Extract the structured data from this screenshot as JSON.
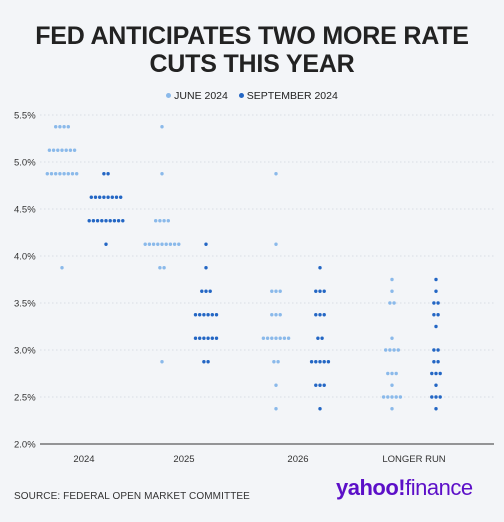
{
  "title_line1": "FED ANTICIPATES TWO MORE RATE",
  "title_line2": "CUTS THIS YEAR",
  "legend": {
    "june": "JUNE 2024",
    "september": "SEPTEMBER 2024"
  },
  "colors": {
    "june": "#8ab9ea",
    "september": "#2366c4",
    "logo": "#5c0fc8",
    "background": "#f3f5f8"
  },
  "source": "SOURCE: FEDERAL OPEN MARKET COMMITTEE",
  "logo": {
    "yahoo": "yahoo",
    "bang": "!",
    "finance": "finance"
  },
  "chart_data": {
    "type": "scatter",
    "categories": [
      "2024",
      "2025",
      "2026",
      "LONGER RUN"
    ],
    "y_ticks": [
      "2.0%",
      "2.5%",
      "3.0%",
      "3.5%",
      "4.0%",
      "4.5%",
      "5.0%",
      "5.5%"
    ],
    "ylim": [
      2.0,
      5.5
    ],
    "series": [
      {
        "name": "JUNE 2024",
        "points": [
          {
            "category": "2024",
            "rates": [
              {
                "value": 5.375,
                "count": 4
              },
              {
                "value": 5.125,
                "count": 7
              },
              {
                "value": 4.875,
                "count": 8
              },
              {
                "value": 3.875,
                "count": 1
              }
            ]
          },
          {
            "category": "2025",
            "rates": [
              {
                "value": 5.375,
                "count": 1
              },
              {
                "value": 4.875,
                "count": 1
              },
              {
                "value": 4.375,
                "count": 4
              },
              {
                "value": 4.125,
                "count": 9
              },
              {
                "value": 3.875,
                "count": 2
              },
              {
                "value": 2.875,
                "count": 1
              }
            ]
          },
          {
            "category": "2026",
            "rates": [
              {
                "value": 4.875,
                "count": 1
              },
              {
                "value": 4.125,
                "count": 1
              },
              {
                "value": 3.625,
                "count": 3
              },
              {
                "value": 3.375,
                "count": 3
              },
              {
                "value": 3.125,
                "count": 7
              },
              {
                "value": 2.875,
                "count": 2
              },
              {
                "value": 2.625,
                "count": 1
              },
              {
                "value": 2.375,
                "count": 1
              }
            ]
          },
          {
            "category": "LONGER RUN",
            "rates": [
              {
                "value": 3.75,
                "count": 1
              },
              {
                "value": 3.625,
                "count": 1
              },
              {
                "value": 3.5,
                "count": 2
              },
              {
                "value": 3.125,
                "count": 1
              },
              {
                "value": 3.0,
                "count": 4
              },
              {
                "value": 2.75,
                "count": 3
              },
              {
                "value": 2.625,
                "count": 1
              },
              {
                "value": 2.5,
                "count": 5
              },
              {
                "value": 2.375,
                "count": 1
              }
            ]
          }
        ]
      },
      {
        "name": "SEPTEMBER 2024",
        "points": [
          {
            "category": "2024",
            "rates": [
              {
                "value": 4.875,
                "count": 2
              },
              {
                "value": 4.625,
                "count": 8
              },
              {
                "value": 4.375,
                "count": 9
              },
              {
                "value": 4.125,
                "count": 1
              }
            ]
          },
          {
            "category": "2025",
            "rates": [
              {
                "value": 4.125,
                "count": 1
              },
              {
                "value": 3.875,
                "count": 1
              },
              {
                "value": 3.625,
                "count": 3
              },
              {
                "value": 3.375,
                "count": 6
              },
              {
                "value": 3.125,
                "count": 6
              },
              {
                "value": 2.875,
                "count": 2
              }
            ]
          },
          {
            "category": "2026",
            "rates": [
              {
                "value": 3.875,
                "count": 1
              },
              {
                "value": 3.625,
                "count": 3
              },
              {
                "value": 3.375,
                "count": 3
              },
              {
                "value": 3.125,
                "count": 2
              },
              {
                "value": 2.875,
                "count": 5
              },
              {
                "value": 2.625,
                "count": 3
              },
              {
                "value": 2.375,
                "count": 1
              }
            ]
          },
          {
            "category": "LONGER RUN",
            "rates": [
              {
                "value": 3.75,
                "count": 1
              },
              {
                "value": 3.625,
                "count": 1
              },
              {
                "value": 3.5,
                "count": 2
              },
              {
                "value": 3.375,
                "count": 2
              },
              {
                "value": 3.25,
                "count": 1
              },
              {
                "value": 3.0,
                "count": 2
              },
              {
                "value": 2.875,
                "count": 2
              },
              {
                "value": 2.75,
                "count": 3
              },
              {
                "value": 2.625,
                "count": 1
              },
              {
                "value": 2.5,
                "count": 3
              },
              {
                "value": 2.375,
                "count": 1
              }
            ]
          }
        ]
      }
    ]
  }
}
